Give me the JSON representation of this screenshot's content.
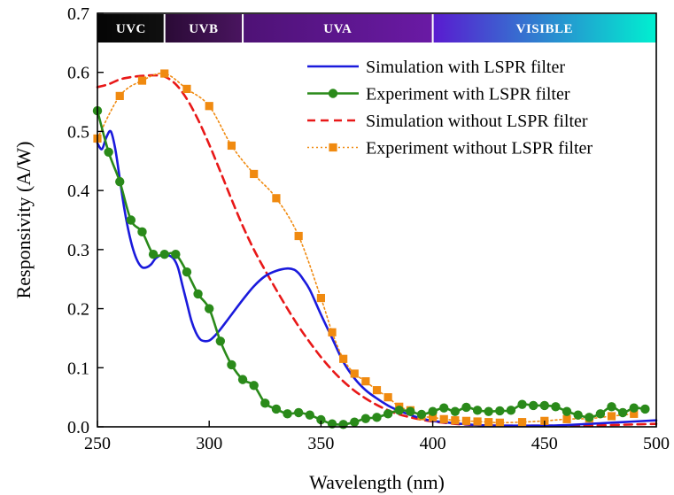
{
  "chart_data": {
    "type": "line",
    "title": "",
    "xlabel": "Wavelength (nm)",
    "ylabel": "Responsivity (A/W)",
    "xlim": [
      250,
      500
    ],
    "ylim": [
      0.0,
      0.7
    ],
    "xticks": [
      250,
      300,
      350,
      400,
      450,
      500
    ],
    "yticks": [
      0.0,
      0.1,
      0.2,
      0.3,
      0.4,
      0.5,
      0.6,
      0.7
    ],
    "ytick_labels": [
      "0.0",
      "0.1",
      "0.2",
      "0.3",
      "0.4",
      "0.5",
      "0.6",
      "0.7"
    ],
    "grid": false,
    "legend_position": "top-right",
    "bands": [
      {
        "label": "UVC",
        "from": 250,
        "to": 280,
        "color_start": "#050505",
        "color_end": "#101010"
      },
      {
        "label": "UVB",
        "from": 280,
        "to": 315,
        "color_start": "#2a0a35",
        "color_end": "#4a1560"
      },
      {
        "label": "UVA",
        "from": 315,
        "to": 400,
        "color_start": "#4e1275",
        "color_end": "#6a1aa5"
      },
      {
        "label": "VISIBLE",
        "from": 400,
        "to": 500,
        "color_start": "#5a1ad0",
        "color_end": "#00f0d0"
      }
    ],
    "series": [
      {
        "name": "Simulation with LSPR filter",
        "style": "solid",
        "color": "#1a1adc",
        "marker": "none",
        "x": [
          250,
          252,
          254,
          256,
          258,
          260,
          262,
          264,
          266,
          268,
          270,
          272,
          274,
          276,
          278,
          280,
          282,
          284,
          286,
          288,
          290,
          292,
          294,
          296,
          298,
          300,
          302,
          305,
          310,
          315,
          320,
          325,
          330,
          335,
          338,
          340,
          342,
          345,
          350,
          355,
          360,
          365,
          370,
          375,
          380,
          385,
          390,
          395,
          400,
          410,
          420,
          430,
          440,
          450,
          460,
          470,
          480,
          490,
          500
        ],
        "y": [
          0.48,
          0.47,
          0.49,
          0.5,
          0.47,
          0.42,
          0.37,
          0.33,
          0.3,
          0.28,
          0.27,
          0.27,
          0.275,
          0.285,
          0.29,
          0.292,
          0.29,
          0.285,
          0.27,
          0.24,
          0.21,
          0.18,
          0.16,
          0.148,
          0.145,
          0.146,
          0.152,
          0.165,
          0.19,
          0.215,
          0.238,
          0.255,
          0.264,
          0.268,
          0.266,
          0.26,
          0.25,
          0.232,
          0.19,
          0.15,
          0.11,
          0.082,
          0.062,
          0.048,
          0.036,
          0.027,
          0.02,
          0.014,
          0.01,
          0.006,
          0.003,
          0.002,
          0.002,
          0.002,
          0.003,
          0.005,
          0.007,
          0.009,
          0.011
        ]
      },
      {
        "name": "Experiment with LSPR filter",
        "style": "solid",
        "color": "#2a8a1a",
        "marker": "circle",
        "x": [
          250,
          255,
          260,
          265,
          270,
          275,
          280,
          285,
          290,
          295,
          300,
          305,
          310,
          315,
          320,
          325,
          330,
          335,
          340,
          345,
          350,
          355,
          360,
          365,
          370,
          375,
          380,
          385,
          390,
          395,
          400,
          405,
          410,
          415,
          420,
          425,
          430,
          435,
          440,
          445,
          450,
          455,
          460,
          465,
          470,
          475,
          480,
          485,
          490,
          495
        ],
        "y": [
          0.535,
          0.465,
          0.415,
          0.35,
          0.33,
          0.292,
          0.292,
          0.292,
          0.262,
          0.225,
          0.2,
          0.145,
          0.105,
          0.08,
          0.07,
          0.04,
          0.03,
          0.022,
          0.024,
          0.02,
          0.012,
          0.005,
          0.004,
          0.008,
          0.014,
          0.016,
          0.022,
          0.028,
          0.026,
          0.021,
          0.026,
          0.032,
          0.026,
          0.033,
          0.028,
          0.026,
          0.027,
          0.028,
          0.038,
          0.036,
          0.036,
          0.034,
          0.026,
          0.02,
          0.016,
          0.022,
          0.034,
          0.024,
          0.032,
          0.03
        ]
      },
      {
        "name": "Simulation without LSPR filter",
        "style": "dashed",
        "color": "#e81818",
        "marker": "none",
        "x": [
          250,
          255,
          260,
          265,
          270,
          275,
          280,
          285,
          290,
          295,
          300,
          305,
          310,
          315,
          320,
          325,
          330,
          335,
          340,
          345,
          350,
          355,
          360,
          365,
          370,
          375,
          380,
          385,
          390,
          395,
          400,
          410,
          420,
          430,
          440,
          450,
          460,
          470,
          480,
          490,
          500
        ],
        "y": [
          0.575,
          0.58,
          0.588,
          0.592,
          0.594,
          0.595,
          0.593,
          0.58,
          0.555,
          0.52,
          0.478,
          0.432,
          0.385,
          0.34,
          0.3,
          0.265,
          0.232,
          0.2,
          0.17,
          0.143,
          0.118,
          0.096,
          0.077,
          0.061,
          0.048,
          0.037,
          0.028,
          0.021,
          0.016,
          0.012,
          0.009,
          0.005,
          0.003,
          0.002,
          0.002,
          0.002,
          0.002,
          0.002,
          0.003,
          0.004,
          0.005
        ]
      },
      {
        "name": "Experiment without LSPR filter",
        "style": "dotted",
        "color": "#f08a10",
        "marker": "square",
        "x": [
          250,
          260,
          270,
          280,
          290,
          300,
          310,
          320,
          330,
          340,
          350,
          355,
          360,
          365,
          370,
          375,
          380,
          385,
          390,
          395,
          400,
          405,
          410,
          415,
          420,
          425,
          430,
          440,
          450,
          460,
          470,
          480,
          490
        ],
        "y": [
          0.488,
          0.56,
          0.586,
          0.598,
          0.572,
          0.543,
          0.476,
          0.428,
          0.387,
          0.323,
          0.218,
          0.16,
          0.115,
          0.09,
          0.077,
          0.062,
          0.05,
          0.034,
          0.028,
          0.018,
          0.016,
          0.013,
          0.011,
          0.01,
          0.009,
          0.008,
          0.007,
          0.008,
          0.01,
          0.013,
          0.014,
          0.018,
          0.022
        ]
      }
    ]
  }
}
